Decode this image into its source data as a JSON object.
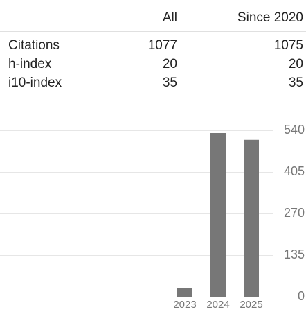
{
  "table": {
    "columns": [
      "All",
      "Since 2020"
    ],
    "rows": [
      {
        "label": "Citations",
        "values": [
          1077,
          1075
        ]
      },
      {
        "label": "h-index",
        "values": [
          20,
          20
        ]
      },
      {
        "label": "i10-index",
        "values": [
          35,
          35
        ]
      }
    ]
  },
  "chart_data": {
    "type": "bar",
    "categories": [
      "2023",
      "2024",
      "2025"
    ],
    "values": [
      29,
      531,
      509
    ],
    "color": "#777777",
    "ylim": [
      0,
      540
    ],
    "yticks": [
      0,
      135,
      270,
      405,
      540
    ],
    "grid": true
  }
}
